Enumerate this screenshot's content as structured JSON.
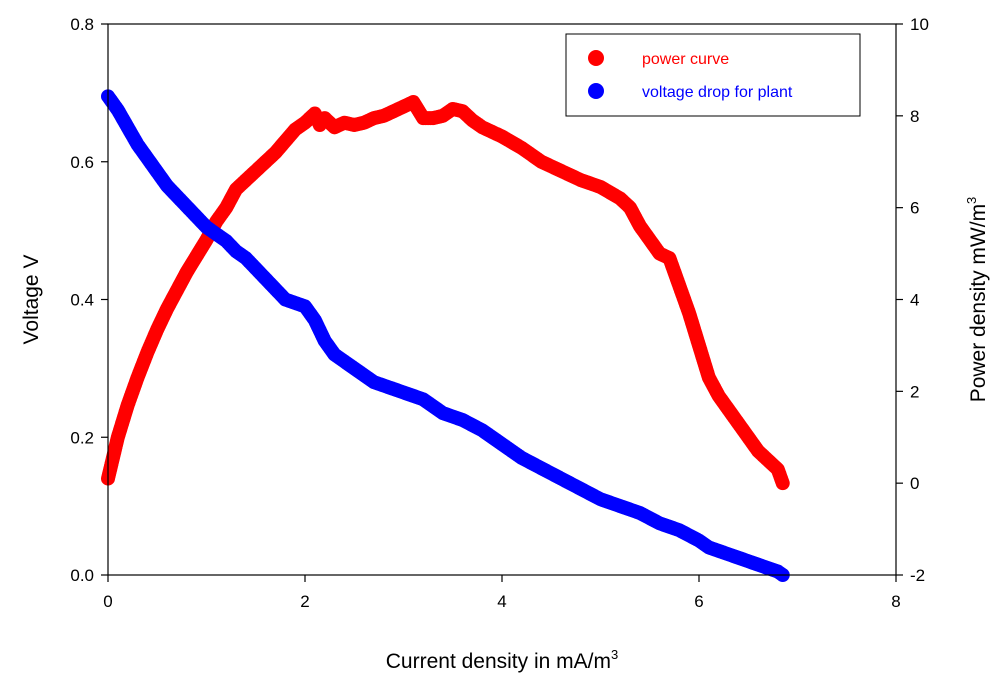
{
  "chart_data": {
    "type": "scatter",
    "xlabel": "Current density in mA/m",
    "xlabel_sup": "3",
    "ylabel_left": "Voltage V",
    "ylabel_right": "Power density mW/m",
    "ylabel_right_sup": "3",
    "xlim": [
      0,
      8
    ],
    "ylim_left": [
      0,
      0.8
    ],
    "ylim_right": [
      -2,
      10
    ],
    "xticks": [
      "0",
      "2",
      "4",
      "6",
      "8"
    ],
    "yticks_left": [
      "0.0",
      "0.2",
      "0.4",
      "0.6",
      "0.8"
    ],
    "yticks_right": [
      "-2",
      "0",
      "2",
      "4",
      "6",
      "8",
      "10"
    ],
    "grid": false,
    "legend_position": "top-right",
    "series": [
      {
        "name": "power curve",
        "axis": "right",
        "color": "#ff0000",
        "x": [
          0,
          0.1,
          0.2,
          0.3,
          0.4,
          0.5,
          0.6,
          0.7,
          0.8,
          0.9,
          1.0,
          1.1,
          1.2,
          1.3,
          1.4,
          1.5,
          1.6,
          1.7,
          1.8,
          1.9,
          2.0,
          2.1,
          2.15,
          2.2,
          2.3,
          2.4,
          2.5,
          2.6,
          2.7,
          2.8,
          2.9,
          3.0,
          3.1,
          3.2,
          3.3,
          3.4,
          3.5,
          3.6,
          3.7,
          3.8,
          3.9,
          4.0,
          4.2,
          4.4,
          4.6,
          4.8,
          5.0,
          5.2,
          5.3,
          5.4,
          5.5,
          5.6,
          5.7,
          5.8,
          5.9,
          6.0,
          6.1,
          6.2,
          6.3,
          6.4,
          6.5,
          6.6,
          6.7,
          6.8,
          6.85
        ],
        "values": [
          0.1,
          1.0,
          1.7,
          2.3,
          2.85,
          3.35,
          3.8,
          4.2,
          4.6,
          4.95,
          5.3,
          5.7,
          6.0,
          6.4,
          6.6,
          6.8,
          7.0,
          7.2,
          7.45,
          7.7,
          7.85,
          8.05,
          7.8,
          7.95,
          7.75,
          7.85,
          7.8,
          7.85,
          7.95,
          8.0,
          8.1,
          8.2,
          8.3,
          7.95,
          7.95,
          8.0,
          8.15,
          8.1,
          7.9,
          7.75,
          7.65,
          7.55,
          7.3,
          7.0,
          6.8,
          6.6,
          6.45,
          6.2,
          6.0,
          5.6,
          5.3,
          5.0,
          4.9,
          4.3,
          3.7,
          3.0,
          2.3,
          1.9,
          1.6,
          1.3,
          1.0,
          0.7,
          0.5,
          0.3,
          0.0
        ]
      },
      {
        "name": "voltage drop for plant",
        "axis": "left",
        "color": "#0000ff",
        "x": [
          0,
          0.1,
          0.2,
          0.3,
          0.4,
          0.5,
          0.6,
          0.7,
          0.8,
          0.9,
          1.0,
          1.1,
          1.2,
          1.3,
          1.4,
          1.5,
          1.6,
          1.7,
          1.8,
          1.9,
          2.0,
          2.1,
          2.2,
          2.3,
          2.4,
          2.5,
          2.6,
          2.7,
          2.8,
          3.0,
          3.2,
          3.4,
          3.6,
          3.8,
          4.0,
          4.2,
          4.4,
          4.6,
          4.8,
          5.0,
          5.2,
          5.4,
          5.6,
          5.8,
          6.0,
          6.1,
          6.2,
          6.4,
          6.6,
          6.8,
          6.85
        ],
        "values": [
          0.695,
          0.675,
          0.65,
          0.625,
          0.605,
          0.585,
          0.565,
          0.55,
          0.535,
          0.52,
          0.505,
          0.495,
          0.485,
          0.47,
          0.46,
          0.445,
          0.43,
          0.415,
          0.4,
          0.395,
          0.39,
          0.37,
          0.34,
          0.32,
          0.31,
          0.3,
          0.29,
          0.28,
          0.275,
          0.265,
          0.255,
          0.235,
          0.225,
          0.21,
          0.19,
          0.17,
          0.155,
          0.14,
          0.125,
          0.11,
          0.1,
          0.09,
          0.075,
          0.065,
          0.05,
          0.04,
          0.035,
          0.025,
          0.015,
          0.005,
          0.0
        ]
      }
    ]
  }
}
